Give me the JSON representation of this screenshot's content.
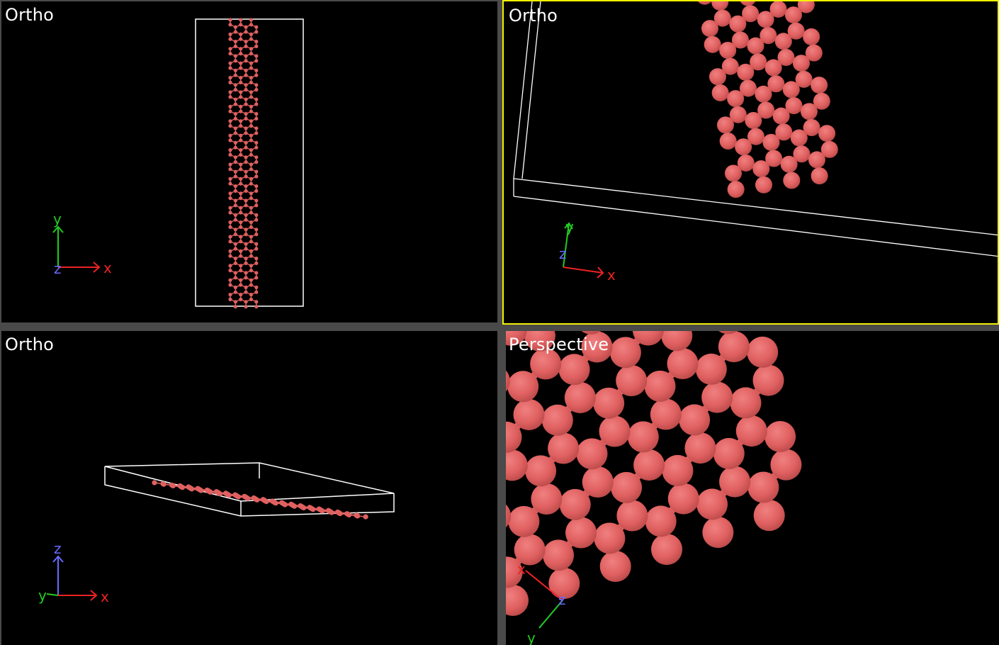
{
  "viewports": [
    {
      "id": "top-left",
      "label": "Ortho",
      "active": false,
      "axes": {
        "x": "x",
        "y": "y",
        "z": "z"
      }
    },
    {
      "id": "top-right",
      "label": "Ortho",
      "active": true,
      "axes": {
        "x": "x",
        "y": "y",
        "z": "z"
      }
    },
    {
      "id": "bottom-left",
      "label": "Ortho",
      "active": false,
      "axes": {
        "x": "x",
        "y": "y",
        "z": "z"
      }
    },
    {
      "id": "bottom-right",
      "label": "Perspective",
      "active": false,
      "axes": {
        "x": "x",
        "y": "y",
        "z": "z"
      }
    }
  ],
  "colors": {
    "atom": "#e06060",
    "bond": "#e06060",
    "cell": "#ffffff",
    "axis_x": "#ee2222",
    "axis_y": "#22cc22",
    "axis_z": "#6a6aff",
    "active_border": "#f2f200",
    "viewport_bg": "#000000",
    "separator": "#4a4a4a"
  }
}
